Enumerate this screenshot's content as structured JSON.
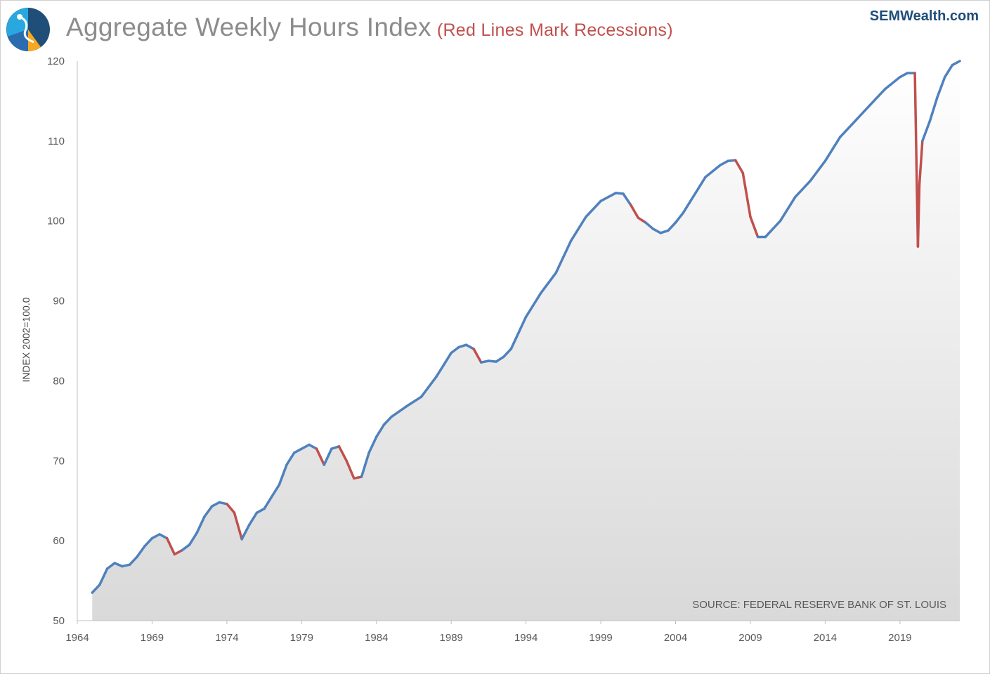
{
  "header": {
    "title": "Aggregate Weekly Hours Index",
    "subtitle": "(Red Lines Mark Recessions)",
    "brand": "SEMWealth.com"
  },
  "logo": {
    "icon": "semwealth-logo-icon"
  },
  "colors": {
    "line": "#4f81bd",
    "recession": "#c0504d",
    "area_top": "#ffffff",
    "area_bottom": "#d9d9d9"
  },
  "chart_data": {
    "type": "area",
    "ylabel": "INDEX 2002=100.0",
    "source": "SOURCE:  FEDERAL RESERVE BANK OF ST. LOUIS",
    "xlim": [
      1964,
      2023
    ],
    "ylim": [
      50,
      120
    ],
    "x_ticks": [
      "1964",
      "1969",
      "1974",
      "1979",
      "1984",
      "1989",
      "1994",
      "1999",
      "2004",
      "2009",
      "2014",
      "2019"
    ],
    "y_ticks": [
      "50",
      "60",
      "70",
      "80",
      "90",
      "100",
      "110",
      "120"
    ],
    "x": [
      1965.0,
      1965.5,
      1966.0,
      1966.5,
      1967.0,
      1967.5,
      1968.0,
      1968.5,
      1969.0,
      1969.5,
      1970.0,
      1970.5,
      1971.0,
      1971.5,
      1972.0,
      1972.5,
      1973.0,
      1973.5,
      1974.0,
      1974.5,
      1975.0,
      1975.5,
      1976.0,
      1976.5,
      1977.0,
      1977.5,
      1978.0,
      1978.5,
      1979.0,
      1979.5,
      1980.0,
      1980.5,
      1981.0,
      1981.5,
      1982.0,
      1982.5,
      1983.0,
      1983.5,
      1984.0,
      1984.5,
      1985.0,
      1986.0,
      1987.0,
      1988.0,
      1988.5,
      1989.0,
      1989.5,
      1990.0,
      1990.5,
      1991.0,
      1991.5,
      1992.0,
      1992.5,
      1993.0,
      1994.0,
      1995.0,
      1996.0,
      1997.0,
      1998.0,
      1999.0,
      2000.0,
      2000.5,
      2001.0,
      2001.5,
      2002.0,
      2002.5,
      2003.0,
      2003.5,
      2004.0,
      2004.5,
      2005.0,
      2006.0,
      2007.0,
      2007.5,
      2008.0,
      2008.5,
      2009.0,
      2009.5,
      2010.0,
      2010.5,
      2011.0,
      2012.0,
      2013.0,
      2014.0,
      2014.5,
      2015.0,
      2016.0,
      2017.0,
      2018.0,
      2019.0,
      2019.5,
      2020.0,
      2020.2,
      2020.3,
      2020.5,
      2021.0,
      2021.5,
      2022.0,
      2022.5,
      2023.0
    ],
    "series": [
      {
        "values": [
          53.5,
          54.5,
          56.5,
          57.2,
          56.8,
          57.0,
          58.0,
          59.3,
          60.3,
          60.8,
          60.3,
          58.3,
          58.8,
          59.5,
          61.0,
          63.0,
          64.3,
          64.8,
          64.6,
          63.5,
          60.2,
          62.0,
          63.5,
          64.0,
          65.5,
          67.0,
          69.5,
          71.0,
          71.5,
          72.0,
          71.5,
          69.5,
          71.5,
          71.8,
          70.0,
          67.8,
          68.0,
          71.0,
          73.0,
          74.5,
          75.5,
          76.8,
          78.0,
          80.5,
          82.0,
          83.5,
          84.2,
          84.5,
          84.0,
          82.3,
          82.5,
          82.4,
          83.0,
          84.0,
          88.0,
          91.0,
          93.5,
          97.5,
          100.5,
          102.5,
          103.5,
          103.4,
          102.0,
          100.4,
          99.8,
          99.0,
          98.5,
          98.8,
          99.8,
          101.0,
          102.5,
          105.5,
          107.0,
          107.5,
          107.6,
          106.0,
          100.5,
          98.0,
          98.0,
          99.0,
          100.0,
          103.0,
          105.0,
          107.5,
          109.0,
          110.5,
          112.5,
          114.5,
          116.5,
          118.0,
          118.5,
          118.5,
          96.8,
          104.5,
          110.0,
          112.5,
          115.5,
          118.0,
          119.5,
          120.0
        ]
      }
    ],
    "recessions": [
      [
        1969.9,
        1970.9
      ],
      [
        1973.9,
        1975.2
      ],
      [
        1980.0,
        1980.5
      ],
      [
        1981.5,
        1982.9
      ],
      [
        1990.5,
        1991.2
      ],
      [
        2001.2,
        2001.9
      ],
      [
        2007.9,
        2009.5
      ],
      [
        2020.1,
        2020.4
      ]
    ]
  }
}
